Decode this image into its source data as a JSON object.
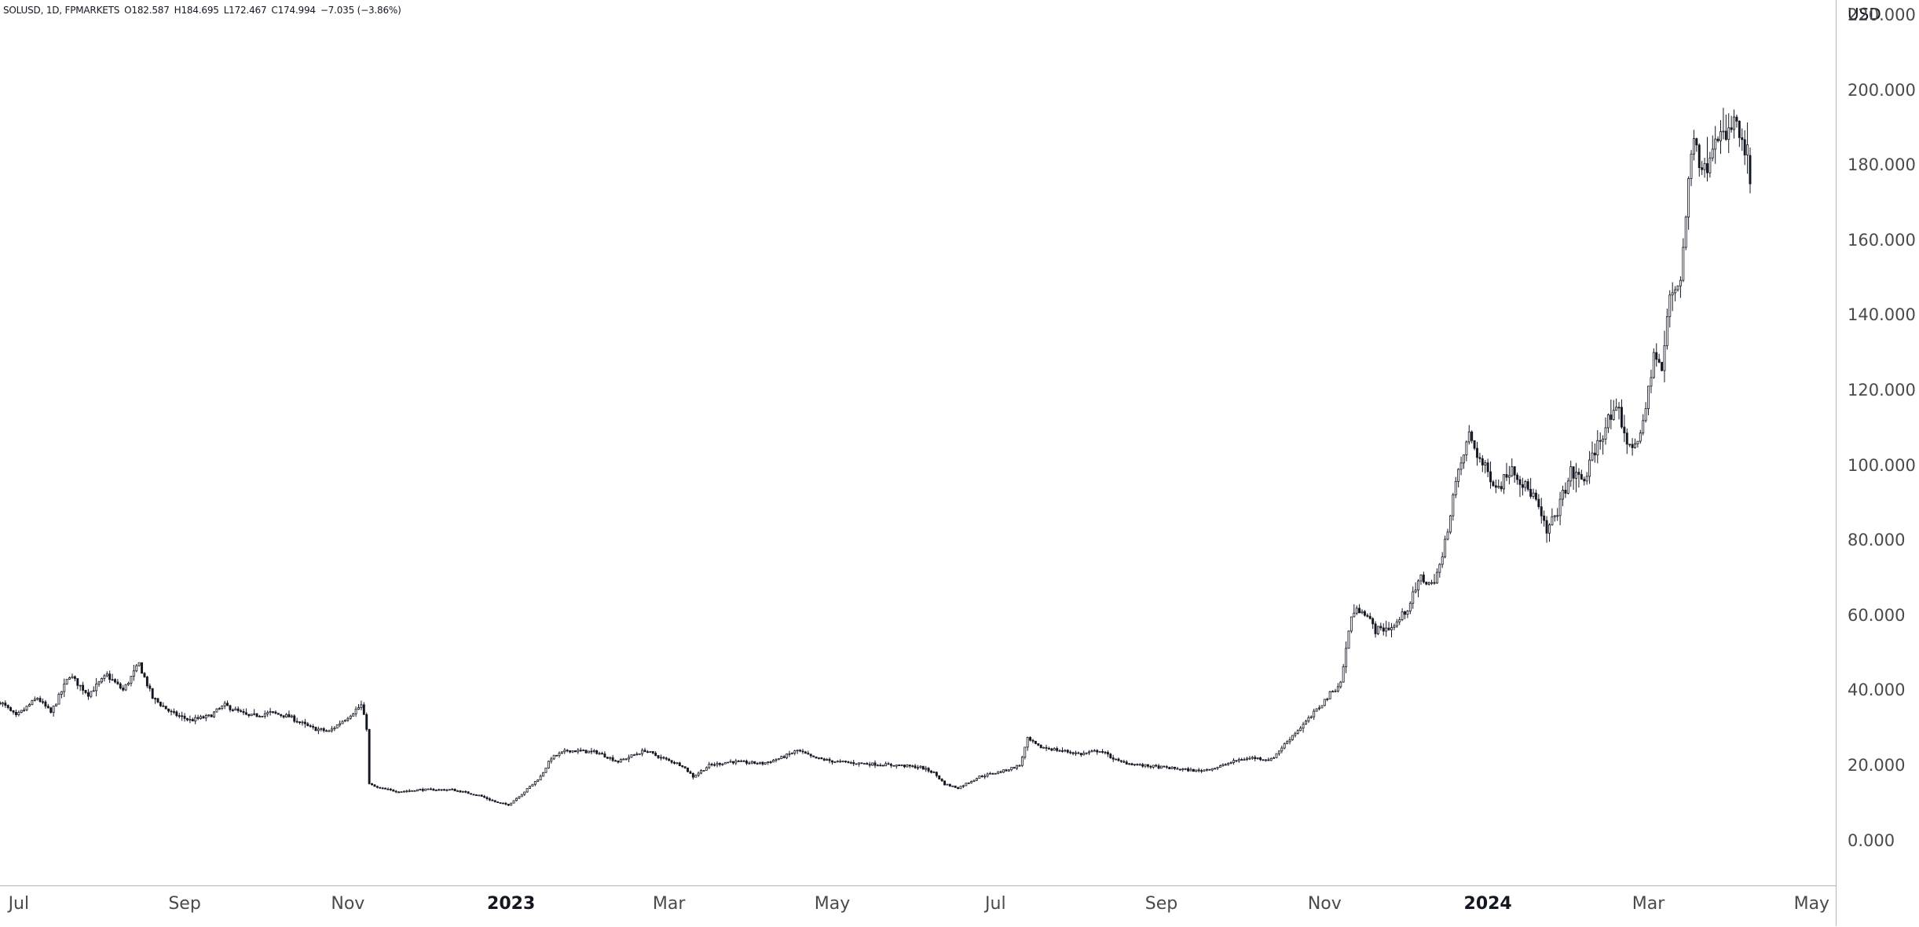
{
  "legend": {
    "symbol": "SOLUSD, 1D, FPMARKETS",
    "open": "O182.587",
    "high": "H184.695",
    "low": "L172.467",
    "close": "C174.994",
    "change": "−7.035 (−3.86%)"
  },
  "chart_data": {
    "type": "candlestick",
    "title": "",
    "currency": "USD",
    "ylim": [
      -12,
      224
    ],
    "y_ticks": [
      "220.000",
      "200.000",
      "180.000",
      "160.000",
      "140.000",
      "120.000",
      "100.000",
      "80.000",
      "60.000",
      "40.000",
      "20.000",
      "0.000"
    ],
    "x_ticks": [
      {
        "label": "Jul",
        "bold": false
      },
      {
        "label": "Sep",
        "bold": false
      },
      {
        "label": "Nov",
        "bold": false
      },
      {
        "label": "2023",
        "bold": true
      },
      {
        "label": "Mar",
        "bold": false
      },
      {
        "label": "May",
        "bold": false
      },
      {
        "label": "Jul",
        "bold": false
      },
      {
        "label": "Sep",
        "bold": false
      },
      {
        "label": "Nov",
        "bold": false
      },
      {
        "label": "2024",
        "bold": true
      },
      {
        "label": "Mar",
        "bold": false
      },
      {
        "label": "May",
        "bold": false
      }
    ],
    "x_range": [
      "2022-06-24",
      "2024-05-10"
    ],
    "close_path": [
      [
        "2022-06-24",
        37
      ],
      [
        "2022-06-30",
        33
      ],
      [
        "2022-07-08",
        38
      ],
      [
        "2022-07-13",
        34
      ],
      [
        "2022-07-20",
        44
      ],
      [
        "2022-07-27",
        39
      ],
      [
        "2022-08-03",
        44
      ],
      [
        "2022-08-09",
        40
      ],
      [
        "2022-08-15",
        47
      ],
      [
        "2022-08-20",
        38
      ],
      [
        "2022-08-27",
        34
      ],
      [
        "2022-09-03",
        32
      ],
      [
        "2022-09-10",
        33
      ],
      [
        "2022-09-16",
        36
      ],
      [
        "2022-09-25",
        33
      ],
      [
        "2022-10-03",
        34
      ],
      [
        "2022-10-10",
        33
      ],
      [
        "2022-10-18",
        30
      ],
      [
        "2022-10-25",
        29
      ],
      [
        "2022-11-01",
        33
      ],
      [
        "2022-11-06",
        36
      ],
      [
        "2022-11-08",
        30
      ],
      [
        "2022-11-09",
        15
      ],
      [
        "2022-11-12",
        14
      ],
      [
        "2022-11-20",
        13
      ],
      [
        "2022-11-28",
        13.5
      ],
      [
        "2022-12-10",
        13.5
      ],
      [
        "2022-12-20",
        12
      ],
      [
        "2022-12-27",
        10
      ],
      [
        "2022-12-31",
        9.5
      ],
      [
        "2023-01-06",
        13
      ],
      [
        "2023-01-12",
        17
      ],
      [
        "2023-01-16",
        22
      ],
      [
        "2023-01-22",
        24
      ],
      [
        "2023-02-02",
        23.5
      ],
      [
        "2023-02-10",
        21
      ],
      [
        "2023-02-20",
        24
      ],
      [
        "2023-02-26",
        22
      ],
      [
        "2023-03-06",
        20
      ],
      [
        "2023-03-10",
        17
      ],
      [
        "2023-03-16",
        20
      ],
      [
        "2023-03-24",
        21
      ],
      [
        "2023-04-05",
        20.5
      ],
      [
        "2023-04-12",
        22
      ],
      [
        "2023-04-18",
        24
      ],
      [
        "2023-04-24",
        22
      ],
      [
        "2023-05-02",
        21
      ],
      [
        "2023-05-12",
        20.5
      ],
      [
        "2023-05-25",
        20
      ],
      [
        "2023-06-03",
        19.5
      ],
      [
        "2023-06-08",
        18
      ],
      [
        "2023-06-12",
        15
      ],
      [
        "2023-06-17",
        14
      ],
      [
        "2023-06-25",
        17
      ],
      [
        "2023-07-04",
        18.5
      ],
      [
        "2023-07-10",
        20
      ],
      [
        "2023-07-13",
        27
      ],
      [
        "2023-07-17",
        25
      ],
      [
        "2023-07-25",
        24
      ],
      [
        "2023-08-02",
        23
      ],
      [
        "2023-08-09",
        24
      ],
      [
        "2023-08-16",
        21
      ],
      [
        "2023-08-24",
        20
      ],
      [
        "2023-09-01",
        19.5
      ],
      [
        "2023-09-08",
        19
      ],
      [
        "2023-09-15",
        18.5
      ],
      [
        "2023-09-22",
        19.5
      ],
      [
        "2023-09-30",
        21.5
      ],
      [
        "2023-10-05",
        22
      ],
      [
        "2023-10-12",
        21.5
      ],
      [
        "2023-10-20",
        28
      ],
      [
        "2023-10-27",
        33
      ],
      [
        "2023-11-03",
        39
      ],
      [
        "2023-11-07",
        42
      ],
      [
        "2023-11-11",
        60
      ],
      [
        "2023-11-15",
        62
      ],
      [
        "2023-11-20",
        56
      ],
      [
        "2023-11-27",
        57
      ],
      [
        "2023-12-02",
        62
      ],
      [
        "2023-12-07",
        70
      ],
      [
        "2023-12-11",
        68
      ],
      [
        "2023-12-15",
        75
      ],
      [
        "2023-12-19",
        92
      ],
      [
        "2023-12-23",
        103
      ],
      [
        "2023-12-25",
        108
      ],
      [
        "2023-12-30",
        100
      ],
      [
        "2024-01-05",
        94
      ],
      [
        "2024-01-10",
        100
      ],
      [
        "2024-01-14",
        95
      ],
      [
        "2024-01-18",
        92
      ],
      [
        "2024-01-23",
        82
      ],
      [
        "2024-01-27",
        88
      ],
      [
        "2024-02-01",
        98
      ],
      [
        "2024-02-06",
        96
      ],
      [
        "2024-02-10",
        104
      ],
      [
        "2024-02-15",
        112
      ],
      [
        "2024-02-19",
        114
      ],
      [
        "2024-02-23",
        104
      ],
      [
        "2024-02-28",
        110
      ],
      [
        "2024-03-03",
        130
      ],
      [
        "2024-03-06",
        125
      ],
      [
        "2024-03-09",
        145
      ],
      [
        "2024-03-13",
        150
      ],
      [
        "2024-03-16",
        175
      ],
      [
        "2024-03-18",
        190
      ],
      [
        "2024-03-20",
        182
      ],
      [
        "2024-03-22",
        178
      ],
      [
        "2024-03-26",
        190
      ],
      [
        "2024-03-30",
        186
      ],
      [
        "2024-04-02",
        192
      ],
      [
        "2024-04-05",
        185
      ],
      [
        "2024-04-07",
        182.587
      ],
      [
        "2024-04-08",
        174.994
      ]
    ]
  }
}
